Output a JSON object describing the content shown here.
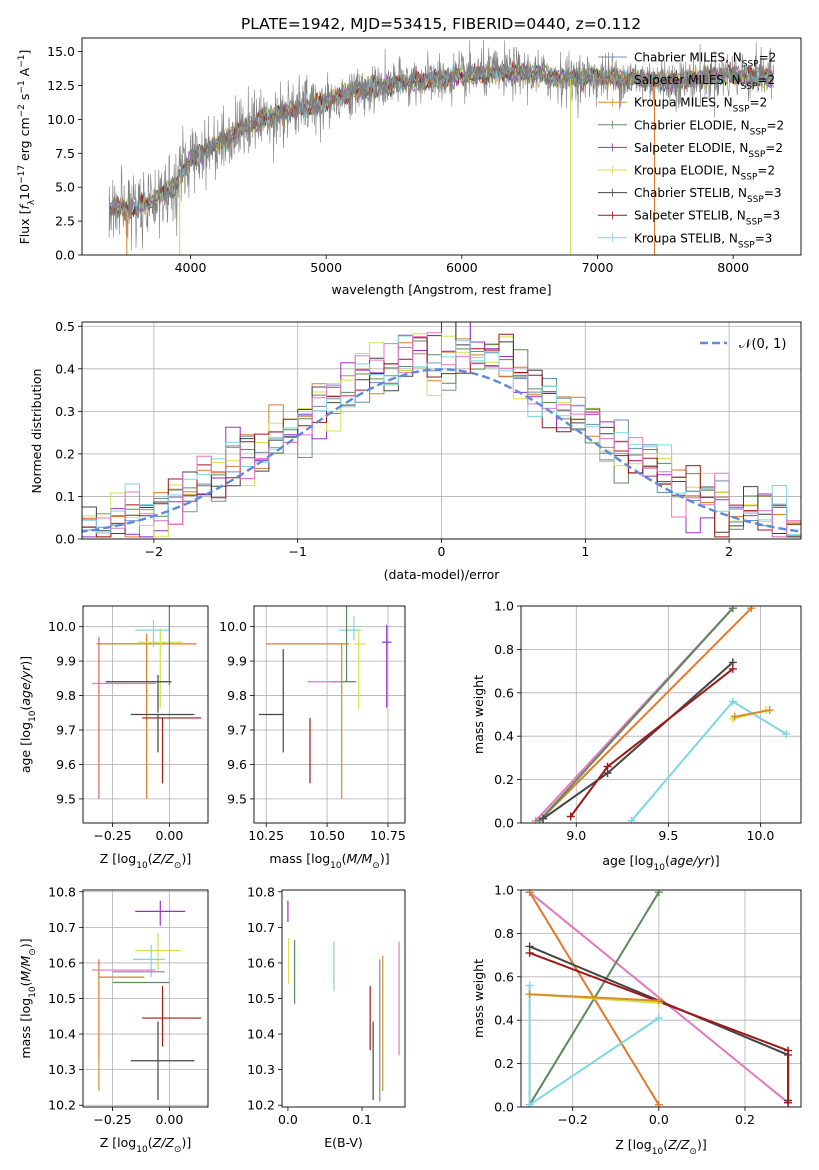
{
  "figure": {
    "title": "PLATE=1942, MJD=53415, FIBERID=0440, z=0.112"
  },
  "chart_data": [
    {
      "id": "spectrum",
      "type": "line",
      "title": "PLATE=1942, MJD=53415, FIBERID=0440, z=0.112",
      "xlabel": "wavelength [Angstrom, rest frame]",
      "ylabel": "Flux [f_λ 10^-17 erg cm^-2 s^-1 A^-1]",
      "xlim": [
        3200,
        8500
      ],
      "ylim": [
        0,
        16
      ],
      "xticks": [
        4000,
        5000,
        6000,
        7000,
        8000
      ],
      "yticks": [
        0.0,
        2.5,
        5.0,
        7.5,
        10.0,
        12.5,
        15.0
      ],
      "grid": false,
      "legend_position": "right",
      "legend": [
        {
          "name": "Chabrier MILES, N_SSP=2",
          "color": "#6b8fb0"
        },
        {
          "name": "Salpeter MILES, N_SSP=2",
          "color": "#e07a2c"
        },
        {
          "name": "Kroupa MILES, N_SSP=2",
          "color": "#d98c2b"
        },
        {
          "name": "Chabrier ELODIE, N_SSP=2",
          "color": "#5c8a5c"
        },
        {
          "name": "Salpeter ELODIE, N_SSP=2",
          "color": "#9b30c8"
        },
        {
          "name": "Kroupa ELODIE, N_SSP=2",
          "color": "#d4e04a"
        },
        {
          "name": "Chabrier STELIB, N_SSP=3",
          "color": "#444444"
        },
        {
          "name": "Salpeter STELIB, N_SSP=3",
          "color": "#a01818"
        },
        {
          "name": "Kroupa STELIB, N_SSP=3",
          "color": "#7dd6e0"
        }
      ],
      "data_color": "#808080",
      "continuum": [
        [
          3400,
          3.6
        ],
        [
          3500,
          3.3
        ],
        [
          3600,
          3.5
        ],
        [
          3800,
          4.5
        ],
        [
          3900,
          5.2
        ],
        [
          4000,
          7.2
        ],
        [
          4200,
          8.2
        ],
        [
          4400,
          9.5
        ],
        [
          4600,
          10.3
        ],
        [
          4800,
          10.8
        ],
        [
          5000,
          11.3
        ],
        [
          5200,
          12.0
        ],
        [
          5400,
          12.4
        ],
        [
          5600,
          12.8
        ],
        [
          5800,
          12.9
        ],
        [
          6000,
          13.2
        ],
        [
          6200,
          13.4
        ],
        [
          6400,
          13.5
        ],
        [
          6600,
          13.2
        ],
        [
          6800,
          13.0
        ],
        [
          7000,
          13.1
        ],
        [
          7200,
          13.0
        ],
        [
          7400,
          12.9
        ],
        [
          7600,
          12.8
        ],
        [
          7800,
          13.1
        ],
        [
          8000,
          13.3
        ],
        [
          8200,
          13.2
        ],
        [
          8300,
          13.0
        ]
      ],
      "drops": [
        {
          "x": 3530,
          "color": "#d98c2b"
        },
        {
          "x": 3920,
          "color": "#d4e04a"
        },
        {
          "x": 6800,
          "color": "#d4e04a"
        },
        {
          "x": 7420,
          "color": "#e07a2c"
        }
      ]
    },
    {
      "id": "residuals",
      "type": "line",
      "xlabel": "(data-model)/error",
      "ylabel": "Normed distribution",
      "xlim": [
        -2.5,
        2.5
      ],
      "ylim": [
        0,
        0.51
      ],
      "xticks": [
        -2,
        -1,
        0,
        1,
        2
      ],
      "yticks": [
        0.0,
        0.1,
        0.2,
        0.3,
        0.4,
        0.5
      ],
      "grid": true,
      "legend_position": "top-right",
      "gaussian_label": "N(0,1)",
      "gaussian_color": "#5b8bd9",
      "bin_width": 0.1,
      "bin_start": -2.5,
      "histogram_colors": [
        "#6b8fb0",
        "#e07a2c",
        "#5c8a5c",
        "#9b30c8",
        "#d4e04a",
        "#444444",
        "#a01818",
        "#7dd6e0",
        "#e377c2"
      ]
    },
    {
      "id": "age_vs_Z",
      "type": "scatter",
      "xlabel": "Z [log10(Z/Z⊙)]",
      "ylabel": "age [log10(age/yr)]",
      "xlim": [
        -0.38,
        0.17
      ],
      "ylim": [
        9.43,
        10.06
      ],
      "xticks": [
        -0.25,
        0.0
      ],
      "xtick_labels": [
        "-0.25",
        "0.00"
      ],
      "yticks": [
        9.5,
        9.6,
        9.7,
        9.8,
        9.9,
        10.0
      ],
      "grid": true,
      "points": [
        {
          "color": "#e07a2c",
          "x": -0.1,
          "xerr": [
            0.22,
            0.22
          ],
          "y": 9.95,
          "yerr": [
            0.45,
            0.03
          ]
        },
        {
          "color": "#d98c2b",
          "x": -0.08,
          "xerr": [
            0.24,
            0.1
          ],
          "y": 9.95,
          "yerr": [
            0.0,
            0.0
          ]
        },
        {
          "color": "#d4e04a",
          "x": -0.04,
          "xerr": [
            0.1,
            0.1
          ],
          "y": 9.955,
          "yerr": [
            0.19,
            0.04
          ]
        },
        {
          "color": "#7dd6e0",
          "x": -0.07,
          "xerr": [
            0.08,
            0.07
          ],
          "y": 9.99,
          "yerr": [
            0.05,
            0.03
          ]
        },
        {
          "color": "#444444",
          "x": -0.05,
          "xerr": [
            0.23,
            0.06
          ],
          "y": 9.84,
          "yerr": [
            0.09,
            0.02
          ]
        },
        {
          "color": "#e377c2",
          "x": -0.2,
          "xerr": [
            0.14,
            0.14
          ],
          "y": 9.835,
          "yerr": [
            0.0,
            0.0
          ]
        },
        {
          "color": "#e06060",
          "x": -0.31,
          "xerr": [
            0.0,
            0.0
          ],
          "y": 9.74,
          "yerr": [
            0.24,
            0.23
          ]
        },
        {
          "color": "#5c8a5c",
          "x": 0.0,
          "xerr": [
            0.0,
            0.0
          ],
          "y": 9.83,
          "yerr": [
            0.0,
            0.23
          ]
        },
        {
          "color": "#444444",
          "x": -0.05,
          "xerr": [
            0.12,
            0.16
          ],
          "y": 9.745,
          "yerr": [
            0.11,
            0.0
          ]
        },
        {
          "color": "#a01818",
          "x": -0.03,
          "xerr": [
            0.09,
            0.17
          ],
          "y": 9.735,
          "yerr": [
            0.19,
            0.0
          ]
        }
      ]
    },
    {
      "id": "age_vs_mass",
      "type": "scatter",
      "xlabel": "mass [log10(M/M⊙)]",
      "xlim": [
        10.2,
        10.82
      ],
      "ylim": [
        9.43,
        10.06
      ],
      "xticks": [
        10.25,
        10.5,
        10.75
      ],
      "xtick_labels": [
        "10.25",
        "10.50",
        "10.75"
      ],
      "yticks": [
        9.5,
        9.6,
        9.7,
        9.8,
        9.9,
        10.0
      ],
      "grid": true,
      "points": [
        {
          "color": "#e07a2c",
          "x": 10.45,
          "xerr": [
            0.2,
            0.14
          ],
          "y": 9.95,
          "yerr": [
            0.0,
            0.0
          ]
        },
        {
          "color": "#d98c2b",
          "x": 10.56,
          "xerr": [
            0.0,
            0.0
          ],
          "y": 9.95,
          "yerr": [
            0.45,
            0.0
          ]
        },
        {
          "color": "#7dd6e0",
          "x": 10.61,
          "xerr": [
            0.06,
            0.03
          ],
          "y": 9.99,
          "yerr": [
            0.03,
            0.04
          ]
        },
        {
          "color": "#d4e04a",
          "x": 10.63,
          "xerr": [
            0.02,
            0.03
          ],
          "y": 9.95,
          "yerr": [
            0.19,
            0.04
          ]
        },
        {
          "color": "#5c8a5c",
          "x": 10.58,
          "xerr": [
            0.06,
            0.04
          ],
          "y": 9.84,
          "yerr": [
            0.0,
            0.22
          ]
        },
        {
          "color": "#e377c2",
          "x": 10.5,
          "xerr": [
            0.08,
            0.06
          ],
          "y": 9.84,
          "yerr": [
            0.0,
            0.0
          ]
        },
        {
          "color": "#9b30c8",
          "x": 10.745,
          "xerr": [
            0.02,
            0.02
          ],
          "y": 9.955,
          "yerr": [
            0.19,
            0.05
          ]
        },
        {
          "color": "#444444",
          "x": 10.32,
          "xerr": [
            0.1,
            0.0
          ],
          "y": 9.745,
          "yerr": [
            0.11,
            0.19
          ]
        },
        {
          "color": "#a01818",
          "x": 10.43,
          "xerr": [
            0.0,
            0.0
          ],
          "y": 9.735,
          "yerr": [
            0.19,
            0.0
          ]
        }
      ]
    },
    {
      "id": "weight_vs_age",
      "type": "line",
      "xlabel": "age [log10(age/yr)]",
      "ylabel": "mass weight",
      "xlim": [
        8.7,
        10.22
      ],
      "ylim": [
        0,
        1.0
      ],
      "xticks": [
        9.0,
        9.5,
        10.0
      ],
      "xtick_labels": [
        "9.0",
        "9.5",
        "10.0"
      ],
      "yticks": [
        0.0,
        0.2,
        0.4,
        0.6,
        0.8,
        1.0
      ],
      "grid": true,
      "series": [
        {
          "color": "#e377c2",
          "x": [
            8.78,
            9.85
          ],
          "y": [
            0.01,
            0.99
          ]
        },
        {
          "color": "#e07a2c",
          "x": [
            8.8,
            9.95
          ],
          "y": [
            0.01,
            0.99
          ]
        },
        {
          "color": "#5c8a5c",
          "x": [
            8.8,
            9.85
          ],
          "y": [
            0.01,
            0.99
          ]
        },
        {
          "color": "#444444",
          "x": [
            8.82,
            9.17,
            9.85
          ],
          "y": [
            0.02,
            0.23,
            0.74
          ]
        },
        {
          "color": "#a01818",
          "x": [
            8.97,
            9.17,
            9.85
          ],
          "y": [
            0.03,
            0.26,
            0.71
          ]
        },
        {
          "color": "#7dd6e0",
          "x": [
            9.3,
            9.85,
            10.14
          ],
          "y": [
            0.01,
            0.56,
            0.41
          ]
        },
        {
          "color": "#d4e04a",
          "x": [
            9.85,
            10.03
          ],
          "y": [
            0.48,
            0.52
          ]
        },
        {
          "color": "#d98c2b",
          "x": [
            9.86,
            10.05
          ],
          "y": [
            0.49,
            0.52
          ]
        }
      ]
    },
    {
      "id": "mass_vs_Z",
      "type": "scatter",
      "xlabel": "Z [log10(Z/Z⊙)]",
      "ylabel": "mass [log10(M/M⊙)]",
      "xlim": [
        -0.38,
        0.17
      ],
      "ylim": [
        10.195,
        10.805
      ],
      "xticks": [
        -0.25,
        0.0
      ],
      "xtick_labels": [
        "-0.25",
        "0.00"
      ],
      "yticks": [
        10.2,
        10.3,
        10.4,
        10.5,
        10.6,
        10.7,
        10.8
      ],
      "grid": true,
      "points": [
        {
          "color": "#9b30c8",
          "x": -0.04,
          "xerr": [
            0.11,
            0.11
          ],
          "y": 10.745,
          "yerr": [
            0.04,
            0.03
          ]
        },
        {
          "color": "#d4e04a",
          "x": -0.05,
          "xerr": [
            0.1,
            0.1
          ],
          "y": 10.635,
          "yerr": [
            0.06,
            0.05
          ]
        },
        {
          "color": "#7dd6e0",
          "x": -0.08,
          "xerr": [
            0.08,
            0.06
          ],
          "y": 10.61,
          "yerr": [
            0.05,
            0.04
          ]
        },
        {
          "color": "#e377c2",
          "x": -0.2,
          "xerr": [
            0.14,
            0.14
          ],
          "y": 10.58,
          "yerr": [
            0.0,
            0.0
          ]
        },
        {
          "color": "#6b8fb0",
          "x": -0.15,
          "xerr": [
            0.1,
            0.13
          ],
          "y": 10.575,
          "yerr": [
            0.0,
            0.0
          ]
        },
        {
          "color": "#e07a2c",
          "x": -0.21,
          "xerr": [
            0.1,
            0.1
          ],
          "y": 10.56,
          "yerr": [
            0.0,
            0.0
          ]
        },
        {
          "color": "#e06060",
          "x": -0.31,
          "xerr": [
            0.0,
            0.0
          ],
          "y": 10.47,
          "yerr": [
            0.14,
            0.14
          ]
        },
        {
          "color": "#d98c2b",
          "x": -0.31,
          "xerr": [
            0.0,
            0.0
          ],
          "y": 10.42,
          "yerr": [
            0.18,
            0.16
          ]
        },
        {
          "color": "#5c8a5c",
          "x": -0.1,
          "xerr": [
            0.15,
            0.1
          ],
          "y": 10.545,
          "yerr": [
            0.0,
            0.0
          ]
        },
        {
          "color": "#a01818",
          "x": -0.03,
          "xerr": [
            0.09,
            0.17
          ],
          "y": 10.445,
          "yerr": [
            0.08,
            0.09
          ]
        },
        {
          "color": "#444444",
          "x": -0.05,
          "xerr": [
            0.12,
            0.16
          ],
          "y": 10.325,
          "yerr": [
            0.11,
            0.11
          ]
        }
      ]
    },
    {
      "id": "mass_vs_ebv",
      "type": "scatter",
      "xlabel": "E(B-V)",
      "xlim": [
        -0.008,
        0.158
      ],
      "ylim": [
        10.195,
        10.805
      ],
      "xticks": [
        0.0,
        0.1
      ],
      "xtick_labels": [
        "0.0",
        "0.1"
      ],
      "yticks": [
        10.2,
        10.3,
        10.4,
        10.5,
        10.6,
        10.7,
        10.8
      ],
      "grid": false,
      "points": [
        {
          "color": "#9b30c8",
          "x": 0.0,
          "y": 10.745,
          "yerr": [
            0.03,
            0.03
          ]
        },
        {
          "color": "#d4e04a",
          "x": 0.001,
          "y": 10.63,
          "yerr": [
            0.09,
            0.04
          ]
        },
        {
          "color": "#5c8a5c",
          "x": 0.009,
          "y": 10.575,
          "yerr": [
            0.09,
            0.09
          ]
        },
        {
          "color": "#7dd6e0",
          "x": 0.062,
          "y": 10.59,
          "yerr": [
            0.07,
            0.07
          ]
        },
        {
          "color": "#a01818",
          "x": 0.111,
          "y": 10.445,
          "yerr": [
            0.09,
            0.09
          ]
        },
        {
          "color": "#444444",
          "x": 0.115,
          "y": 10.325,
          "yerr": [
            0.11,
            0.11
          ]
        },
        {
          "color": "#6b8fb0",
          "x": 0.124,
          "y": 10.41,
          "yerr": [
            0.2,
            0.2
          ]
        },
        {
          "color": "#d98c2b",
          "x": 0.128,
          "y": 10.43,
          "yerr": [
            0.19,
            0.19
          ]
        },
        {
          "color": "#e377c2",
          "x": 0.15,
          "y": 10.5,
          "yerr": [
            0.16,
            0.16
          ]
        }
      ]
    },
    {
      "id": "weight_vs_Z",
      "type": "line",
      "xlabel": "Z [log10(Z/Z⊙)]",
      "ylabel": "mass weight",
      "xlim": [
        -0.32,
        0.33
      ],
      "ylim": [
        0,
        1.0
      ],
      "xticks": [
        -0.2,
        0.0,
        0.2
      ],
      "xtick_labels": [
        "-0.2",
        "0.0",
        "0.2"
      ],
      "yticks": [
        0.0,
        0.2,
        0.4,
        0.6,
        0.8,
        1.0
      ],
      "grid": true,
      "series": [
        {
          "color": "#e377c2",
          "x": [
            -0.3,
            0.3
          ],
          "y": [
            0.99,
            0.02
          ]
        },
        {
          "color": "#e07a2c",
          "x": [
            -0.3,
            0.0
          ],
          "y": [
            0.99,
            0.01
          ]
        },
        {
          "color": "#5c8a5c",
          "x": [
            -0.3,
            0.0
          ],
          "y": [
            0.01,
            0.99
          ]
        },
        {
          "color": "#444444",
          "x": [
            -0.3,
            0.3,
            0.3
          ],
          "y": [
            0.74,
            0.24,
            0.03
          ]
        },
        {
          "color": "#a01818",
          "x": [
            -0.3,
            0.3,
            0.3
          ],
          "y": [
            0.71,
            0.26,
            0.02
          ]
        },
        {
          "color": "#7dd6e0",
          "x": [
            -0.3,
            -0.3,
            0.0
          ],
          "y": [
            0.56,
            0.01,
            0.41
          ]
        },
        {
          "color": "#d4e04a",
          "x": [
            -0.3,
            0.0
          ],
          "y": [
            0.52,
            0.48
          ]
        },
        {
          "color": "#d98c2b",
          "x": [
            -0.3,
            0.0
          ],
          "y": [
            0.52,
            0.49
          ]
        }
      ]
    }
  ]
}
